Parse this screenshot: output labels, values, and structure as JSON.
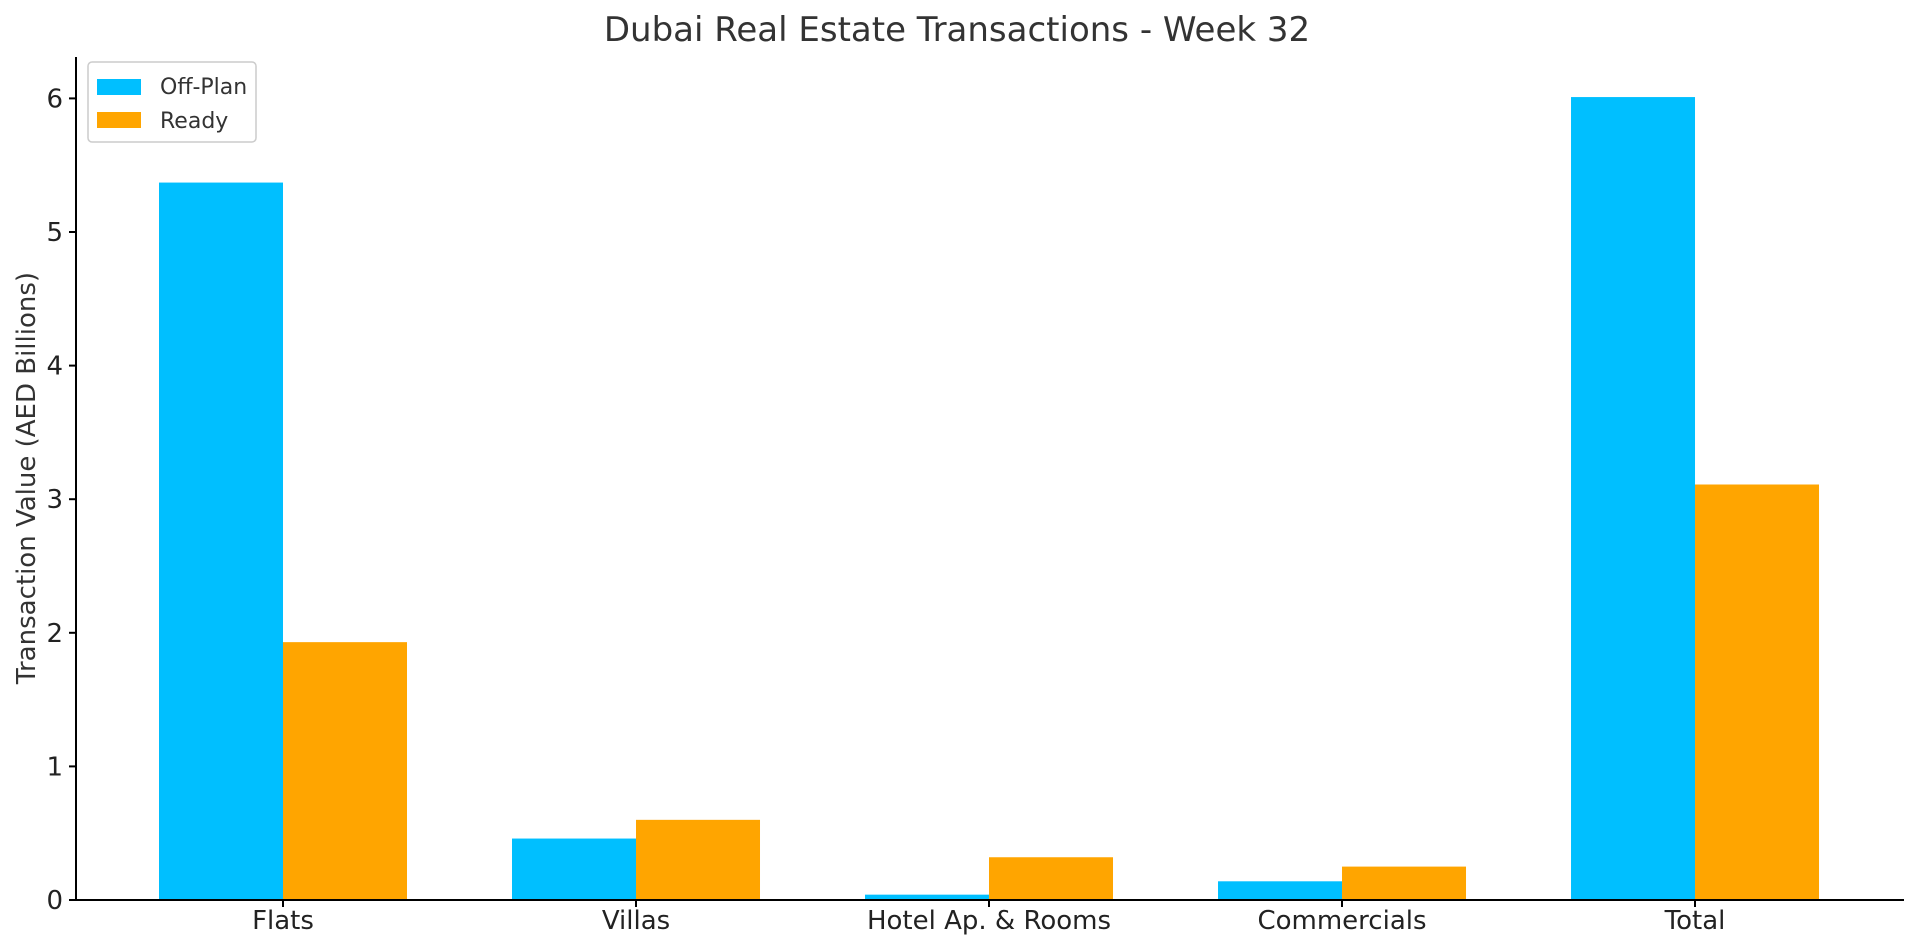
{
  "chart_data": {
    "type": "bar",
    "title": "Dubai Real Estate Transactions - Week 32",
    "xlabel": "",
    "ylabel": "Transaction Value (AED Billions)",
    "categories": [
      "Flats",
      "Villas",
      "Hotel Ap. & Rooms",
      "Commercials",
      "Total"
    ],
    "series": [
      {
        "name": "Off-Plan",
        "color": "#00BFFF",
        "values": [
          5.37,
          0.46,
          0.04,
          0.14,
          6.01
        ]
      },
      {
        "name": "Ready",
        "color": "#FFA500",
        "values": [
          1.93,
          0.6,
          0.32,
          0.25,
          3.11
        ]
      }
    ],
    "ylim": [
      0,
      6.3
    ],
    "yticks": [
      0,
      1,
      2,
      3,
      4,
      5,
      6
    ],
    "grid": false,
    "legend_position": "top-left",
    "spines": "left-bottom"
  }
}
